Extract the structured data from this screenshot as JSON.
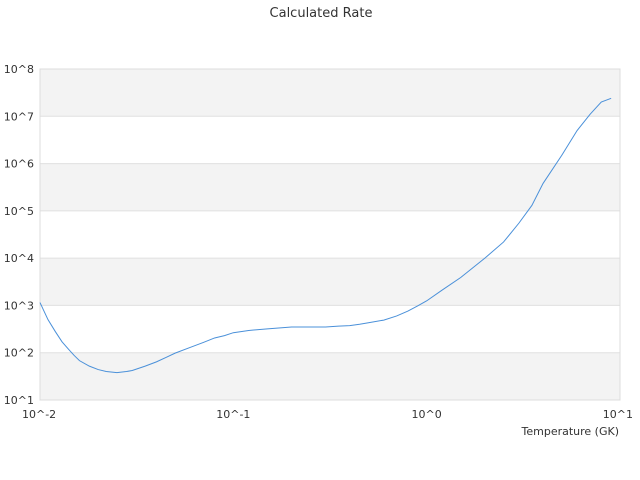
{
  "chart_data": {
    "type": "line",
    "title": "Calculated Rate",
    "xlabel": "Temperature (GK)",
    "ylabel": "",
    "x_scale": "log",
    "y_scale": "log",
    "xlim": [
      0.01,
      10
    ],
    "ylim": [
      10,
      100000000
    ],
    "x_ticks": [
      "10^-2",
      "10^-1",
      "10^0",
      "10^1"
    ],
    "y_ticks": [
      "10^1",
      "10^2",
      "10^3",
      "10^4",
      "10^5",
      "10^6",
      "10^7",
      "10^8"
    ],
    "alternating_bands": true,
    "series_color": "#4a90d9",
    "band_color": "#f3f3f3",
    "x": [
      0.01,
      0.011,
      0.012,
      0.013,
      0.014,
      0.015,
      0.016,
      0.018,
      0.02,
      0.022,
      0.025,
      0.028,
      0.03,
      0.035,
      0.04,
      0.045,
      0.05,
      0.06,
      0.07,
      0.08,
      0.09,
      0.1,
      0.12,
      0.15,
      0.2,
      0.25,
      0.3,
      0.35,
      0.4,
      0.45,
      0.5,
      0.6,
      0.7,
      0.8,
      0.9,
      1.0,
      1.2,
      1.5,
      2.0,
      2.5,
      3.0,
      3.5,
      4.0,
      5.0,
      6.0,
      7.0,
      8.0,
      9.0
    ],
    "y": [
      1150,
      500,
      280,
      170,
      120,
      88,
      68,
      52,
      44,
      40,
      38,
      40,
      42,
      52,
      64,
      80,
      98,
      130,
      165,
      205,
      230,
      265,
      295,
      320,
      350,
      350,
      350,
      365,
      375,
      400,
      430,
      490,
      600,
      760,
      980,
      1250,
      2100,
      3900,
      10000,
      22000,
      55000,
      130000,
      380000,
      1500000,
      5000000,
      11000000,
      20000000,
      24000000
    ]
  }
}
